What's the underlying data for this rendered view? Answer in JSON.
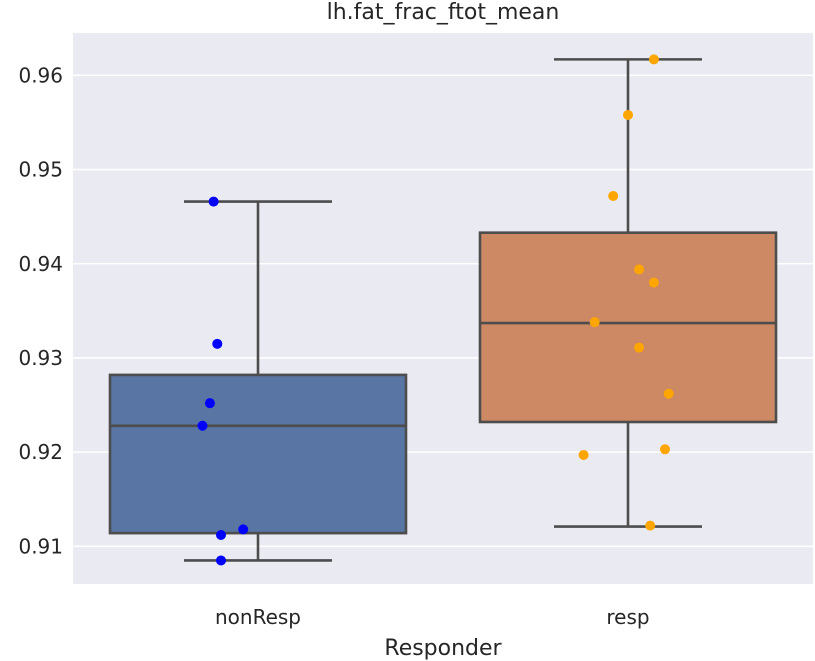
{
  "chart_data": {
    "type": "box",
    "title": "lh.fat_frac_ftot_mean",
    "xlabel": "Responder",
    "ylabel": "",
    "ylim": [
      0.906,
      0.9645
    ],
    "yticks": [
      0.91,
      0.92,
      0.93,
      0.94,
      0.95,
      0.96
    ],
    "ytick_labels": [
      "0.91",
      "0.92",
      "0.93",
      "0.94",
      "0.95",
      "0.96"
    ],
    "grid": true,
    "categories": [
      "nonResp",
      "resp"
    ],
    "boxes": [
      {
        "category": "nonResp",
        "whisker_low": 0.9085,
        "q1": 0.9114,
        "median": 0.9228,
        "q3": 0.9282,
        "whisker_high": 0.9466,
        "box_color": "#5875a4",
        "point_color": "#0000ff",
        "points": [
          {
            "x": -0.12,
            "y": 0.9466
          },
          {
            "x": -0.11,
            "y": 0.9315
          },
          {
            "x": -0.13,
            "y": 0.9252
          },
          {
            "x": -0.15,
            "y": 0.9228
          },
          {
            "x": -0.04,
            "y": 0.9118
          },
          {
            "x": -0.1,
            "y": 0.9112
          },
          {
            "x": -0.1,
            "y": 0.9085
          }
        ]
      },
      {
        "category": "resp",
        "whisker_low": 0.9121,
        "q1": 0.9232,
        "median": 0.9337,
        "q3": 0.9433,
        "whisker_high": 0.9617,
        "box_color": "#cc8963",
        "point_color": "#ffa500",
        "points": [
          {
            "x": 0.07,
            "y": 0.9617
          },
          {
            "x": 0.0,
            "y": 0.9558
          },
          {
            "x": -0.04,
            "y": 0.9472
          },
          {
            "x": 0.03,
            "y": 0.9394
          },
          {
            "x": 0.07,
            "y": 0.938
          },
          {
            "x": -0.09,
            "y": 0.9338
          },
          {
            "x": 0.03,
            "y": 0.9311
          },
          {
            "x": 0.11,
            "y": 0.9262
          },
          {
            "x": 0.1,
            "y": 0.9203
          },
          {
            "x": -0.12,
            "y": 0.9197
          },
          {
            "x": 0.06,
            "y": 0.9122
          }
        ]
      }
    ]
  },
  "colors": {
    "plot_background": "#eaeaf2",
    "grid": "#ffffff",
    "line": "#4d4d4d",
    "text": "#262626"
  }
}
